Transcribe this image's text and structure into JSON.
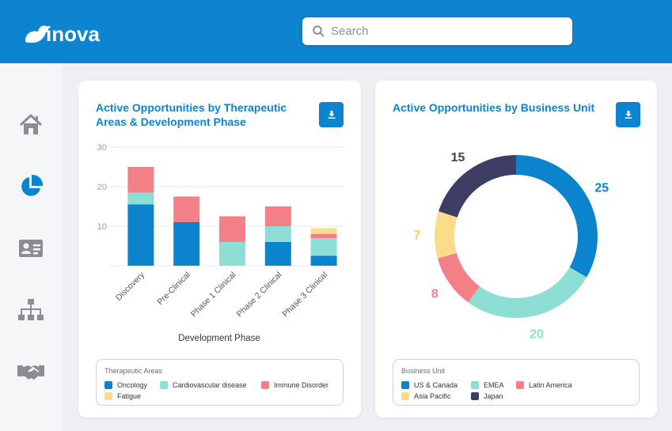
{
  "header": {
    "brand": "inova",
    "search_placeholder": "Search"
  },
  "sidebar": {
    "items": [
      {
        "name": "home",
        "icon": "home-icon",
        "active": false
      },
      {
        "name": "analytics",
        "icon": "pie-chart-icon",
        "active": true
      },
      {
        "name": "contacts",
        "icon": "id-card-icon",
        "active": false
      },
      {
        "name": "organization",
        "icon": "org-chart-icon",
        "active": false
      },
      {
        "name": "partnerships",
        "icon": "handshake-icon",
        "active": false
      }
    ]
  },
  "colors": {
    "brand": "#0c84cf",
    "oncology": "#0b84cd",
    "cardiovascular": "#8ddfd6",
    "immune": "#f28086",
    "fatigue": "#fadc8a",
    "us_canada": "#0b84cd",
    "emea": "#8ddfd6",
    "latin_america": "#f28086",
    "asia_pacific": "#fadc8a",
    "japan": "#3e3e64"
  },
  "left_card": {
    "title": "Active Opportunities by Therapeutic Areas & Development Phase",
    "legend_title": "Therapeutic Areas",
    "download_icon": "download-icon"
  },
  "right_card": {
    "title": "Active Opportunities by Business Unit",
    "legend_title": "Business Unit",
    "download_icon": "download-icon"
  },
  "chart_data": [
    {
      "type": "bar",
      "stacked": true,
      "title": "Active Opportunities by Therapeutic Areas & Development Phase",
      "xlabel": "Development Phase",
      "ylabel": "",
      "ylim": [
        0,
        30
      ],
      "yticks": [
        10,
        20,
        30
      ],
      "grid": true,
      "legend_position": "bottom",
      "categories": [
        "Discovery",
        "Pre-Clinical",
        "Phase 1 Clinical",
        "Phase 2 Clinical",
        "Phase 3 Clinical"
      ],
      "series": [
        {
          "name": "Oncology",
          "color": "#0b84cd",
          "values": [
            15.5,
            11,
            0,
            6,
            2.5
          ]
        },
        {
          "name": "Cardiovascular disease",
          "color": "#8ddfd6",
          "values": [
            3,
            0,
            6,
            4,
            4.5
          ]
        },
        {
          "name": "Immune Disorder",
          "color": "#f28086",
          "values": [
            6.5,
            6.5,
            6.5,
            5,
            1
          ]
        },
        {
          "name": "Fatigue",
          "color": "#fadc8a",
          "values": [
            0,
            0,
            0,
            0,
            1.5
          ]
        }
      ]
    },
    {
      "type": "pie",
      "donut": true,
      "title": "Active Opportunities by Business Unit",
      "legend_position": "bottom",
      "slices": [
        {
          "name": "US & Canada",
          "value": 25,
          "color": "#0b84cd"
        },
        {
          "name": "EMEA",
          "value": 20,
          "color": "#8ddfd6"
        },
        {
          "name": "Latin America",
          "value": 8,
          "color": "#f28086"
        },
        {
          "name": "Asia Pacific",
          "value": 7,
          "color": "#fadc8a"
        },
        {
          "name": "Japan",
          "value": 15,
          "color": "#3e3e64"
        }
      ]
    }
  ]
}
